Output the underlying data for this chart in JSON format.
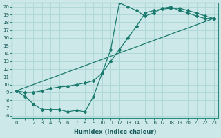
{
  "xlabel": "Humidex (Indice chaleur)",
  "bg_color": "#cce8e8",
  "grid_color": "#b0d8d8",
  "line_color": "#1a7a6e",
  "xlim": [
    -0.5,
    23.5
  ],
  "ylim": [
    5.7,
    20.5
  ],
  "xticks": [
    0,
    1,
    2,
    3,
    4,
    5,
    6,
    7,
    8,
    9,
    10,
    11,
    12,
    13,
    14,
    15,
    16,
    17,
    18,
    19,
    20,
    21,
    22,
    23
  ],
  "yticks": [
    6,
    7,
    8,
    9,
    10,
    11,
    12,
    13,
    14,
    15,
    16,
    17,
    18,
    19,
    20
  ],
  "line1_x": [
    0,
    1,
    2,
    3,
    4,
    5,
    6,
    7,
    8,
    9,
    10,
    11,
    12,
    13,
    14,
    15,
    16,
    17,
    18,
    19,
    20,
    21,
    22,
    23
  ],
  "line1_y": [
    9.2,
    8.5,
    7.5,
    6.8,
    6.8,
    6.8,
    6.5,
    6.7,
    6.5,
    8.5,
    11.5,
    14.5,
    20.5,
    20.0,
    19.5,
    18.8,
    19.2,
    19.8,
    20.0,
    19.5,
    19.2,
    18.8,
    18.5,
    18.5
  ],
  "line2_x": [
    0,
    1,
    2,
    3,
    4,
    5,
    6,
    7,
    8,
    9,
    10,
    11,
    12,
    13,
    14,
    15,
    16,
    17,
    18,
    19,
    20,
    21,
    22,
    23
  ],
  "line2_y": [
    9.2,
    9.0,
    9.0,
    9.2,
    9.5,
    9.7,
    9.8,
    10.0,
    10.2,
    10.5,
    11.5,
    13.0,
    14.5,
    16.0,
    17.5,
    19.2,
    19.5,
    19.7,
    19.8,
    19.8,
    19.5,
    19.2,
    18.8,
    18.5
  ],
  "line3_x": [
    0,
    23
  ],
  "line3_y": [
    9.2,
    18.5
  ]
}
